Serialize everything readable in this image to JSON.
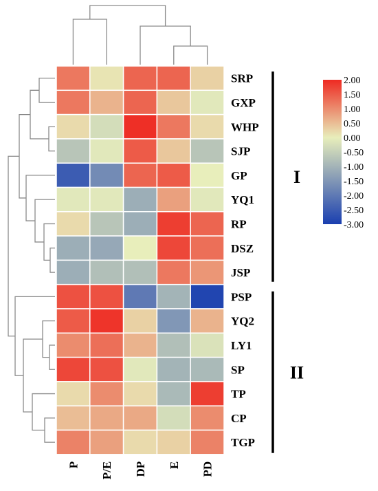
{
  "chart_data": {
    "type": "heatmap",
    "columns": [
      "P",
      "P/E",
      "DP",
      "E",
      "PD"
    ],
    "rows": [
      "SRP",
      "GXP",
      "WHP",
      "SJP",
      "GP",
      "YQ1",
      "RP",
      "DSZ",
      "JSP",
      "PSP",
      "YQ2",
      "LY1",
      "SP",
      "TP",
      "CP",
      "TGP"
    ],
    "values": [
      [
        1.2,
        0.1,
        1.4,
        1.4,
        0.3
      ],
      [
        1.2,
        0.6,
        1.4,
        0.4,
        -0.1
      ],
      [
        0.2,
        -0.3,
        1.95,
        1.2,
        0.2
      ],
      [
        -0.7,
        -0.1,
        1.5,
        0.4,
        -0.7
      ],
      [
        -2.5,
        -1.7,
        1.4,
        1.5,
        0.0
      ],
      [
        -0.1,
        -0.1,
        -1.1,
        0.8,
        -0.1
      ],
      [
        0.2,
        -0.7,
        -1.1,
        1.8,
        1.4
      ],
      [
        -1.1,
        -1.2,
        0.0,
        1.7,
        1.3
      ],
      [
        -1.1,
        -0.8,
        -0.8,
        1.2,
        0.9
      ],
      [
        1.6,
        1.6,
        -2.0,
        -1.0,
        -2.9
      ],
      [
        1.5,
        1.9,
        0.3,
        -1.5,
        0.6
      ],
      [
        1.0,
        1.3,
        0.6,
        -0.8,
        -0.2
      ],
      [
        1.7,
        1.6,
        -0.1,
        -1.0,
        -0.9
      ],
      [
        0.2,
        1.0,
        0.2,
        -0.9,
        1.8
      ],
      [
        0.5,
        0.7,
        0.7,
        -0.3,
        1.0
      ],
      [
        1.1,
        0.8,
        0.2,
        0.3,
        1.1
      ]
    ],
    "colorbar": {
      "ticks": [
        "2.00",
        "1.50",
        "1.00",
        "0.50",
        "0.00",
        "-0.50",
        "-1.00",
        "-1.50",
        "-2.00",
        "-2.50",
        "-3.00"
      ],
      "range": [
        -3.0,
        2.0
      ],
      "colors": [
        "#1a3fb0",
        "#e8eebb",
        "#ee2a22"
      ]
    },
    "groups": [
      {
        "label": "I",
        "rows": [
          "SRP",
          "GXP",
          "WHP",
          "SJP",
          "GP",
          "YQ1",
          "RP",
          "DSZ",
          "JSP"
        ]
      },
      {
        "label": "II",
        "rows": [
          "PSP",
          "YQ2",
          "LY1",
          "SP",
          "TP",
          "CP",
          "TGP"
        ]
      }
    ],
    "grid": true
  }
}
